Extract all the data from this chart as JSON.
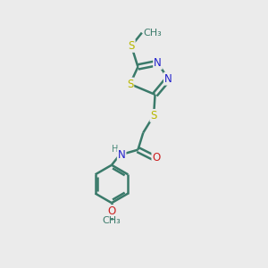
{
  "background_color": "#ebebeb",
  "bond_color": "#3a7a6a",
  "n_color": "#2020cc",
  "s_color": "#b8b800",
  "o_color": "#cc2020",
  "nh_color": "#4a8a7a",
  "line_width": 1.8,
  "figsize": [
    3.0,
    3.0
  ],
  "dpi": 100,
  "xlim": [
    0,
    10
  ],
  "ylim": [
    0,
    10
  ]
}
